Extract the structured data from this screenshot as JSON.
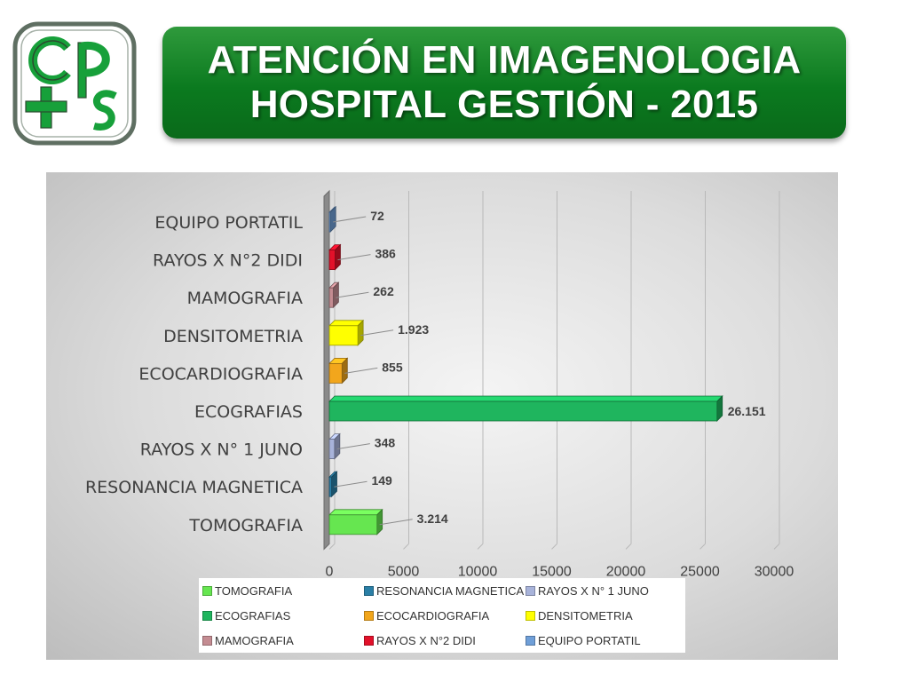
{
  "header": {
    "title_line1": "ATENCIÓN EN IMAGENOLOGIA",
    "title_line2": "HOSPITAL GESTIÓN - 2015"
  },
  "logo": {
    "letters": "cps",
    "colors": {
      "green": "#17a03a",
      "dark": "#2b4a2f"
    }
  },
  "chart_data": {
    "type": "bar",
    "orientation": "horizontal",
    "style": "3d",
    "categories": [
      "EQUIPO PORTATIL",
      "RAYOS X N°2 DIDI",
      "MAMOGRAFIA",
      "DENSITOMETRIA",
      "ECOCARDIOGRAFIA",
      "ECOGRAFIAS",
      "RAYOS X N° 1 JUNO",
      "RESONANCIA MAGNETICA",
      "TOMOGRAFIA"
    ],
    "values": [
      72,
      386,
      262,
      1923,
      855,
      26151,
      348,
      149,
      3214
    ],
    "data_labels": [
      "72",
      "386",
      "262",
      "1.923",
      "855",
      "26.151",
      "348",
      "149",
      "3.214"
    ],
    "colors": [
      "#6f9fd8",
      "#e2112a",
      "#c48c92",
      "#ffff00",
      "#f2a61c",
      "#1fb55e",
      "#a8b3da",
      "#2a7fa6",
      "#66e650"
    ],
    "xlim": [
      0,
      30000
    ],
    "xticks": [
      "0",
      "5000",
      "10000",
      "15000",
      "20000",
      "25000",
      "30000"
    ],
    "grid": true,
    "legend_position": "bottom",
    "legend": [
      {
        "label": "TOMOGRAFIA",
        "color": "#66e650"
      },
      {
        "label": "RESONANCIA MAGNETICA",
        "color": "#2a7fa6"
      },
      {
        "label": "RAYOS X N° 1 JUNO",
        "color": "#a8b3da"
      },
      {
        "label": "ECOGRAFIAS",
        "color": "#1fb55e"
      },
      {
        "label": "ECOCARDIOGRAFIA",
        "color": "#f2a61c"
      },
      {
        "label": "DENSITOMETRIA",
        "color": "#ffff00"
      },
      {
        "label": "MAMOGRAFIA",
        "color": "#c48c92"
      },
      {
        "label": "RAYOS X N°2 DIDI",
        "color": "#e2112a"
      },
      {
        "label": "EQUIPO PORTATIL",
        "color": "#6f9fd8"
      }
    ]
  }
}
